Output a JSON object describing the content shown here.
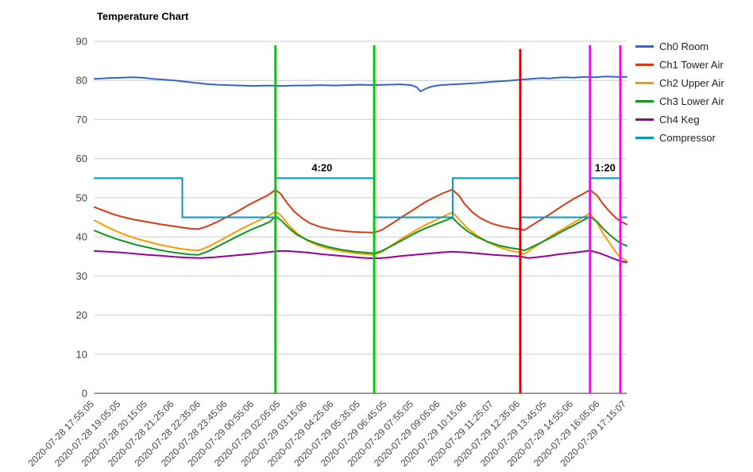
{
  "chart_data": {
    "type": "line",
    "title": "Temperature Chart",
    "xlabel": "",
    "ylabel": "",
    "ylim": [
      0,
      90
    ],
    "yticks": [
      0,
      10,
      20,
      30,
      40,
      50,
      60,
      70,
      80,
      90
    ],
    "grid": "horizontal",
    "legend_position": "right",
    "x_tick_labels": [
      "2020-07-28 17:55:05",
      "2020-07-28 19:05:05",
      "2020-07-28 20:15:05",
      "2020-07-28 21:25:06",
      "2020-07-28 22:35:06",
      "2020-07-28 23:45:06",
      "2020-07-29 00:55:06",
      "2020-07-29 02:05:05",
      "2020-07-29 03:15:06",
      "2020-07-29 04:25:06",
      "2020-07-29 05:35:05",
      "2020-07-29 06:45:05",
      "2020-07-29 07:55:05",
      "2020-07-29 09:05:06",
      "2020-07-29 10:15:06",
      "2020-07-29 11:25:07",
      "2020-07-29 12:35:06",
      "2020-07-29 13:45:05",
      "2020-07-29 14:55:06",
      "2020-07-29 16:05:06",
      "2020-07-29 17:15:07"
    ],
    "series": [
      {
        "name": "Ch0 Room",
        "color": "#3366cc",
        "points": [
          [
            0,
            80.4
          ],
          [
            0.5,
            80.6
          ],
          [
            1,
            80.7
          ],
          [
            1.4,
            80.8
          ],
          [
            1.8,
            80.7
          ],
          [
            2.2,
            80.4
          ],
          [
            2.6,
            80.2
          ],
          [
            3,
            80.0
          ],
          [
            3.4,
            79.7
          ],
          [
            3.8,
            79.4
          ],
          [
            4.2,
            79.1
          ],
          [
            4.6,
            78.9
          ],
          [
            5,
            78.8
          ],
          [
            5.5,
            78.7
          ],
          [
            6,
            78.6
          ],
          [
            6.5,
            78.7
          ],
          [
            7,
            78.6
          ],
          [
            7.5,
            78.7
          ],
          [
            8,
            78.7
          ],
          [
            8.5,
            78.8
          ],
          [
            9,
            78.7
          ],
          [
            9.5,
            78.8
          ],
          [
            10,
            78.9
          ],
          [
            10.5,
            78.8
          ],
          [
            11,
            78.9
          ],
          [
            11.5,
            79.0
          ],
          [
            11.9,
            78.8
          ],
          [
            12.1,
            78.3
          ],
          [
            12.25,
            77.2
          ],
          [
            12.45,
            77.9
          ],
          [
            12.7,
            78.5
          ],
          [
            13,
            78.8
          ],
          [
            13.5,
            79.0
          ],
          [
            14,
            79.2
          ],
          [
            14.5,
            79.4
          ],
          [
            15,
            79.7
          ],
          [
            15.5,
            79.9
          ],
          [
            16,
            80.2
          ],
          [
            16.4,
            80.4
          ],
          [
            16.8,
            80.6
          ],
          [
            17.1,
            80.5
          ],
          [
            17.4,
            80.7
          ],
          [
            17.7,
            80.8
          ],
          [
            18,
            80.7
          ],
          [
            18.4,
            80.9
          ],
          [
            18.8,
            80.8
          ],
          [
            19.2,
            81.0
          ],
          [
            19.6,
            80.9
          ],
          [
            20,
            80.9
          ]
        ]
      },
      {
        "name": "Ch1 Tower Air",
        "color": "#dc3912",
        "points": [
          [
            0,
            47.6
          ],
          [
            0.3,
            46.8
          ],
          [
            0.7,
            45.8
          ],
          [
            1,
            45.2
          ],
          [
            1.5,
            44.4
          ],
          [
            2,
            43.8
          ],
          [
            2.5,
            43.2
          ],
          [
            3,
            42.7
          ],
          [
            3.3,
            42.4
          ],
          [
            3.6,
            42.1
          ],
          [
            3.9,
            42.0
          ],
          [
            4.2,
            42.6
          ],
          [
            4.6,
            43.8
          ],
          [
            5,
            45.2
          ],
          [
            5.4,
            46.6
          ],
          [
            5.8,
            48.2
          ],
          [
            6.2,
            49.6
          ],
          [
            6.5,
            50.6
          ],
          [
            6.8,
            52.0
          ],
          [
            7.0,
            51.0
          ],
          [
            7.2,
            49.0
          ],
          [
            7.5,
            46.5
          ],
          [
            7.8,
            44.8
          ],
          [
            8.1,
            43.5
          ],
          [
            8.5,
            42.5
          ],
          [
            9,
            41.8
          ],
          [
            9.5,
            41.4
          ],
          [
            10,
            41.2
          ],
          [
            10.51,
            41.1
          ],
          [
            10.8,
            41.8
          ],
          [
            11.2,
            43.5
          ],
          [
            11.6,
            45.3
          ],
          [
            12,
            47.0
          ],
          [
            12.4,
            48.8
          ],
          [
            12.8,
            50.2
          ],
          [
            13.1,
            51.2
          ],
          [
            13.45,
            52.1
          ],
          [
            13.7,
            50.5
          ],
          [
            13.9,
            48.5
          ],
          [
            14.2,
            46.3
          ],
          [
            14.5,
            44.8
          ],
          [
            14.9,
            43.5
          ],
          [
            15.3,
            42.7
          ],
          [
            15.7,
            42.2
          ],
          [
            16,
            42.0
          ],
          [
            16.15,
            41.7
          ],
          [
            16.4,
            42.8
          ],
          [
            16.8,
            44.5
          ],
          [
            17.2,
            46.2
          ],
          [
            17.6,
            48.0
          ],
          [
            18,
            49.7
          ],
          [
            18.3,
            50.8
          ],
          [
            18.62,
            52.0
          ],
          [
            18.9,
            50.5
          ],
          [
            19.1,
            48.5
          ],
          [
            19.35,
            46.5
          ],
          [
            19.6,
            44.8
          ],
          [
            19.76,
            44.0
          ],
          [
            20,
            43.2
          ]
        ]
      },
      {
        "name": "Ch2 Upper Air",
        "color": "#ff9900",
        "points": [
          [
            0,
            44.2
          ],
          [
            0.4,
            42.8
          ],
          [
            0.8,
            41.5
          ],
          [
            1.2,
            40.4
          ],
          [
            1.6,
            39.5
          ],
          [
            2,
            38.8
          ],
          [
            2.4,
            38.1
          ],
          [
            2.8,
            37.5
          ],
          [
            3.2,
            37.0
          ],
          [
            3.6,
            36.7
          ],
          [
            3.9,
            36.5
          ],
          [
            4.3,
            37.6
          ],
          [
            4.7,
            39.0
          ],
          [
            5.1,
            40.5
          ],
          [
            5.5,
            42.0
          ],
          [
            5.9,
            43.3
          ],
          [
            6.3,
            44.6
          ],
          [
            6.6,
            45.6
          ],
          [
            6.8,
            46.5
          ],
          [
            7.0,
            45.5
          ],
          [
            7.3,
            43.0
          ],
          [
            7.6,
            41.0
          ],
          [
            8,
            39.0
          ],
          [
            8.4,
            37.8
          ],
          [
            8.8,
            37.0
          ],
          [
            9.3,
            36.3
          ],
          [
            9.8,
            35.8
          ],
          [
            10.51,
            35.4
          ],
          [
            10.8,
            36.2
          ],
          [
            11.2,
            38.0
          ],
          [
            11.6,
            39.8
          ],
          [
            12,
            41.4
          ],
          [
            12.4,
            42.9
          ],
          [
            12.8,
            44.2
          ],
          [
            13.1,
            45.2
          ],
          [
            13.45,
            46.3
          ],
          [
            13.7,
            44.5
          ],
          [
            14,
            42.3
          ],
          [
            14.4,
            40.2
          ],
          [
            14.8,
            38.6
          ],
          [
            15.2,
            37.4
          ],
          [
            15.6,
            36.5
          ],
          [
            16,
            36.0
          ],
          [
            16.15,
            35.6
          ],
          [
            16.4,
            36.8
          ],
          [
            16.8,
            38.6
          ],
          [
            17.2,
            40.4
          ],
          [
            17.6,
            42.0
          ],
          [
            18,
            43.6
          ],
          [
            18.3,
            44.8
          ],
          [
            18.62,
            46.0
          ],
          [
            18.9,
            43.5
          ],
          [
            19.1,
            41.0
          ],
          [
            19.35,
            38.5
          ],
          [
            19.6,
            36.0
          ],
          [
            19.76,
            34.8
          ],
          [
            20,
            33.9
          ]
        ]
      },
      {
        "name": "Ch3 Lower Air",
        "color": "#109618",
        "points": [
          [
            0,
            41.6
          ],
          [
            0.4,
            40.5
          ],
          [
            0.8,
            39.5
          ],
          [
            1.2,
            38.7
          ],
          [
            1.6,
            37.9
          ],
          [
            2,
            37.3
          ],
          [
            2.4,
            36.7
          ],
          [
            2.8,
            36.2
          ],
          [
            3.2,
            35.8
          ],
          [
            3.6,
            35.5
          ],
          [
            3.9,
            35.4
          ],
          [
            4.3,
            36.4
          ],
          [
            4.7,
            37.8
          ],
          [
            5.1,
            39.2
          ],
          [
            5.5,
            40.6
          ],
          [
            5.9,
            41.9
          ],
          [
            6.3,
            43.0
          ],
          [
            6.6,
            43.9
          ],
          [
            6.8,
            45.3
          ],
          [
            7.0,
            44.3
          ],
          [
            7.3,
            42.3
          ],
          [
            7.6,
            40.6
          ],
          [
            8,
            39.2
          ],
          [
            8.4,
            38.2
          ],
          [
            8.8,
            37.4
          ],
          [
            9.3,
            36.7
          ],
          [
            9.8,
            36.2
          ],
          [
            10.51,
            35.8
          ],
          [
            10.8,
            36.4
          ],
          [
            11.2,
            37.8
          ],
          [
            11.6,
            39.3
          ],
          [
            12,
            40.8
          ],
          [
            12.4,
            42.1
          ],
          [
            12.8,
            43.2
          ],
          [
            13.1,
            44.0
          ],
          [
            13.45,
            44.9
          ],
          [
            13.7,
            43.2
          ],
          [
            14,
            41.5
          ],
          [
            14.4,
            39.9
          ],
          [
            14.8,
            38.7
          ],
          [
            15.2,
            37.8
          ],
          [
            15.6,
            37.2
          ],
          [
            16,
            36.8
          ],
          [
            16.15,
            36.5
          ],
          [
            16.4,
            37.3
          ],
          [
            16.8,
            38.6
          ],
          [
            17.2,
            40.0
          ],
          [
            17.6,
            41.5
          ],
          [
            18,
            42.9
          ],
          [
            18.3,
            44.0
          ],
          [
            18.62,
            45.2
          ],
          [
            18.9,
            43.8
          ],
          [
            19.1,
            42.2
          ],
          [
            19.35,
            40.6
          ],
          [
            19.6,
            39.2
          ],
          [
            19.76,
            38.4
          ],
          [
            20,
            37.7
          ]
        ]
      },
      {
        "name": "Ch4 Keg",
        "color": "#990099",
        "points": [
          [
            0,
            36.4
          ],
          [
            0.5,
            36.2
          ],
          [
            1,
            36.0
          ],
          [
            1.5,
            35.7
          ],
          [
            2,
            35.4
          ],
          [
            2.5,
            35.2
          ],
          [
            3,
            34.9
          ],
          [
            3.5,
            34.7
          ],
          [
            4,
            34.6
          ],
          [
            4.5,
            34.8
          ],
          [
            5,
            35.1
          ],
          [
            5.5,
            35.4
          ],
          [
            6,
            35.7
          ],
          [
            6.4,
            36.0
          ],
          [
            6.8,
            36.3
          ],
          [
            7.2,
            36.4
          ],
          [
            7.6,
            36.2
          ],
          [
            8,
            36.0
          ],
          [
            8.5,
            35.6
          ],
          [
            9,
            35.3
          ],
          [
            9.5,
            35.0
          ],
          [
            10,
            34.7
          ],
          [
            10.51,
            34.5
          ],
          [
            11,
            34.7
          ],
          [
            11.5,
            35.1
          ],
          [
            12,
            35.4
          ],
          [
            12.5,
            35.7
          ],
          [
            13,
            36.0
          ],
          [
            13.45,
            36.2
          ],
          [
            14,
            36.0
          ],
          [
            14.5,
            35.7
          ],
          [
            15,
            35.4
          ],
          [
            15.5,
            35.2
          ],
          [
            16,
            35.0
          ],
          [
            16.3,
            34.6
          ],
          [
            16.6,
            34.8
          ],
          [
            17,
            35.1
          ],
          [
            17.4,
            35.5
          ],
          [
            17.8,
            35.8
          ],
          [
            18.2,
            36.1
          ],
          [
            18.62,
            36.5
          ],
          [
            19,
            35.8
          ],
          [
            19.3,
            35.0
          ],
          [
            19.6,
            34.2
          ],
          [
            19.76,
            33.8
          ],
          [
            20,
            33.5
          ]
        ]
      },
      {
        "name": "Compressor",
        "color": "#0099c6",
        "points": [
          [
            0,
            55
          ],
          [
            3.3,
            55
          ],
          [
            3.3,
            45
          ],
          [
            6.8,
            45
          ],
          [
            6.8,
            55
          ],
          [
            10.51,
            55
          ],
          [
            10.51,
            45
          ],
          [
            13.46,
            45
          ],
          [
            13.46,
            55
          ],
          [
            16,
            55
          ],
          [
            16,
            45
          ],
          [
            18.62,
            45
          ],
          [
            18.62,
            55
          ],
          [
            19.76,
            55
          ],
          [
            19.76,
            45
          ],
          [
            20,
            45
          ]
        ]
      }
    ],
    "event_lines": [
      {
        "name": "compressor-run-start-1",
        "x": 6.8,
        "y_top": 89,
        "color": "#00cc00"
      },
      {
        "name": "compressor-run-end-1",
        "x": 10.51,
        "y_top": 89,
        "color": "#00cc00"
      },
      {
        "name": "event-red",
        "x": 16.0,
        "y_top": 88,
        "color": "#e00000"
      },
      {
        "name": "compressor-run-start-2",
        "x": 18.62,
        "y_top": 89,
        "color": "#ff00ff"
      },
      {
        "name": "compressor-run-end-2",
        "x": 19.76,
        "y_top": 89,
        "color": "#ff00ff"
      }
    ],
    "annotations": [
      {
        "x": 8.55,
        "y": 56.8,
        "text": "4:20"
      },
      {
        "x": 19.19,
        "y": 56.8,
        "text": "1:20"
      }
    ]
  }
}
